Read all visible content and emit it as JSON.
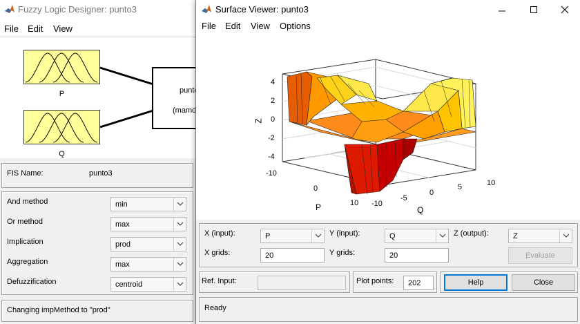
{
  "designer": {
    "title": "Fuzzy Logic Designer: punto3",
    "menu": [
      "File",
      "Edit",
      "View"
    ],
    "inputs": [
      "P",
      "Q"
    ],
    "system_line1": "punto",
    "system_line2": "(mamd",
    "fis_name_label": "FIS Name:",
    "fis_name_value": "punto3",
    "methods": [
      {
        "label": "And method",
        "value": "min"
      },
      {
        "label": "Or method",
        "value": "max"
      },
      {
        "label": "Implication",
        "value": "prod"
      },
      {
        "label": "Aggregation",
        "value": "max"
      },
      {
        "label": "Defuzzification",
        "value": "centroid"
      }
    ],
    "status": "Changing impMethod to \"prod\""
  },
  "viewer": {
    "title": "Surface Viewer: punto3",
    "menu": [
      "File",
      "Edit",
      "View",
      "Options"
    ],
    "window_buttons": [
      "minimize-icon",
      "maximize-icon",
      "close-icon"
    ],
    "plot": {
      "z_ticks": [
        "4",
        "2",
        "0",
        "-2",
        "-4"
      ],
      "p_ticks": [
        "-10",
        "0",
        "10"
      ],
      "q_ticks": [
        "-10",
        "-5",
        "0",
        "5",
        "10"
      ],
      "z_label": "Z",
      "p_label": "P",
      "q_label": "Q"
    },
    "x_input_label": "X (input):",
    "x_input_value": "P",
    "y_input_label": "Y (input):",
    "y_input_value": "Q",
    "z_output_label": "Z (output):",
    "z_output_value": "Z",
    "x_grids_label": "X grids:",
    "x_grids_value": "20",
    "y_grids_label": "Y grids:",
    "y_grids_value": "20",
    "evaluate_label": "Evaluate",
    "ref_input_label": "Ref. Input:",
    "ref_input_value": "",
    "plot_points_label": "Plot points:",
    "plot_points_value": "202",
    "help_label": "Help",
    "close_label": "Close",
    "status": "Ready"
  }
}
